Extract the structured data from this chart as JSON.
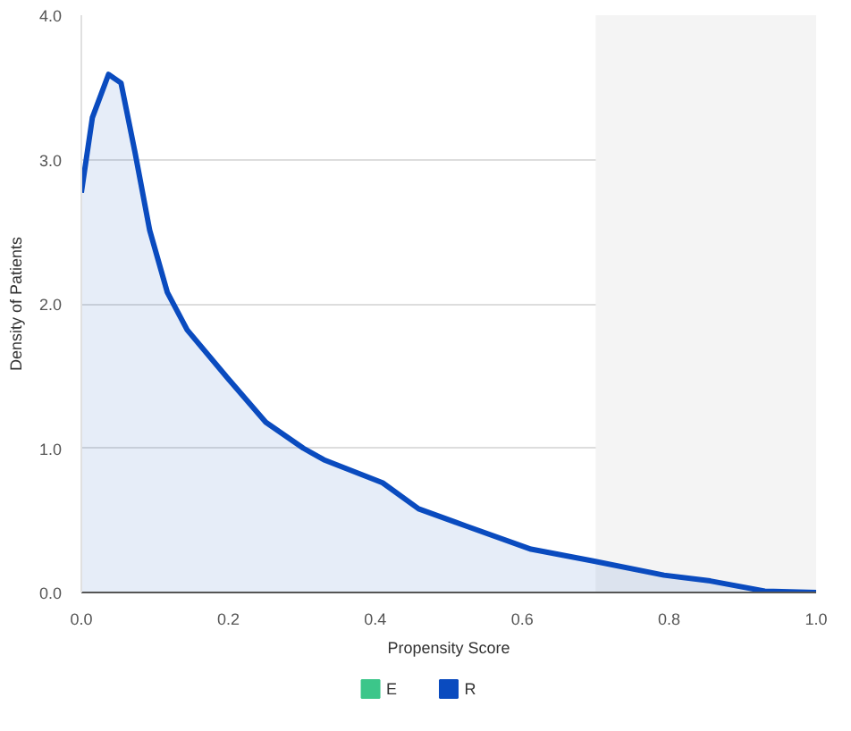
{
  "chart_data": {
    "type": "area",
    "xlabel": "Propensity Score",
    "ylabel": "Density of Patients",
    "xlim": [
      0,
      1
    ],
    "ylim": [
      0,
      4
    ],
    "xticks": [
      {
        "value": 0,
        "label": "0.0"
      },
      {
        "value": 0.2,
        "label": "0.2"
      },
      {
        "value": 0.4,
        "label": "0.4"
      },
      {
        "value": 0.6,
        "label": "0.6"
      },
      {
        "value": 0.8,
        "label": "0.8"
      },
      {
        "value": 1,
        "label": "1.0"
      }
    ],
    "yticks": [
      {
        "value": 0,
        "label": "0.0"
      },
      {
        "value": 1,
        "label": "1.0"
      },
      {
        "value": 2,
        "label": "2.0"
      },
      {
        "value": 3,
        "label": "3.0"
      },
      {
        "value": 4,
        "label": "4.0"
      }
    ],
    "grid": "y",
    "legend": "bottom",
    "bands": [
      {
        "axis": "x",
        "from": 0.7,
        "to": 1.0,
        "color": "#f4f4f4"
      }
    ],
    "x": [
      0,
      0.015,
      0.037,
      0.054,
      0.073,
      0.093,
      0.117,
      0.144,
      0.2,
      0.251,
      0.302,
      0.33,
      0.41,
      0.459,
      0.524,
      0.612,
      0.695,
      0.793,
      0.856,
      0.93,
      1.0
    ],
    "series": [
      {
        "name": "E",
        "color": "#3cc68a",
        "values": [
          null,
          null,
          null,
          null,
          null,
          null,
          null,
          null,
          null,
          null,
          null,
          null,
          null,
          null,
          null,
          null,
          null,
          null,
          null,
          null,
          null
        ]
      },
      {
        "name": "R",
        "color": "#0a4bbf",
        "values": [
          2.77,
          3.29,
          3.59,
          3.53,
          3.05,
          2.51,
          2.08,
          1.82,
          1.48,
          1.18,
          1.0,
          0.92,
          0.76,
          0.58,
          0.46,
          0.3,
          0.22,
          0.12,
          0.08,
          0.01,
          0.0
        ]
      }
    ]
  }
}
